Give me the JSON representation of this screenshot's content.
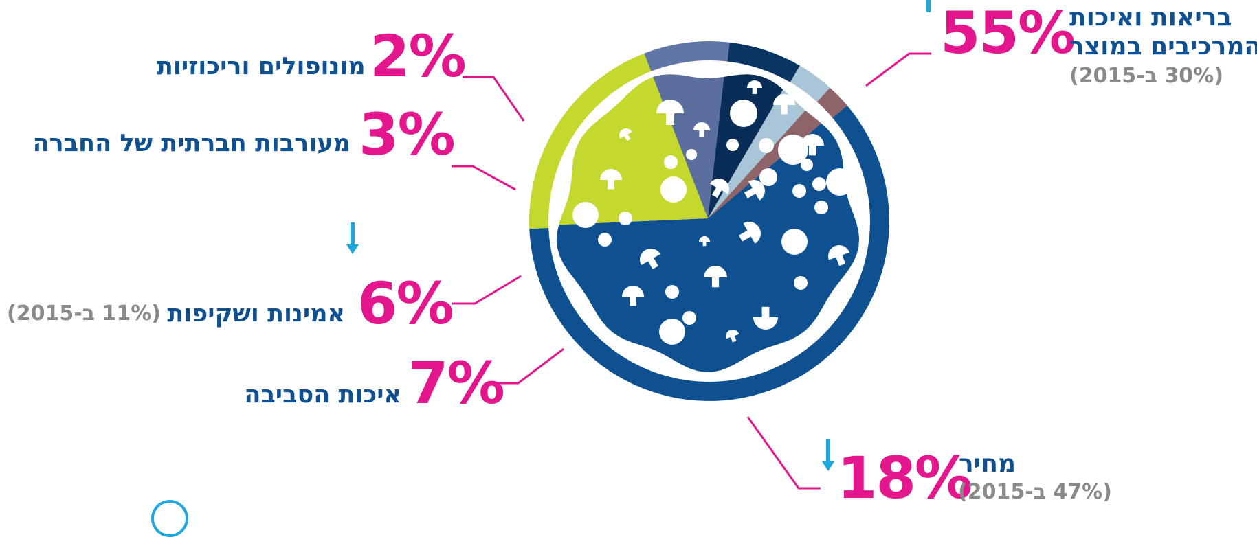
{
  "chart_data": {
    "type": "pie",
    "unit": "%",
    "slices": [
      {
        "label": "בריאות ואיכות המרכיבים במוצר",
        "label_line1": "בריאות ואיכות",
        "label_line2": "המרכיבים במוצר",
        "value": 55,
        "display": "55%",
        "previous": "(30% ב-2015)",
        "trend": "up",
        "color": "#0f5190",
        "pizza_color": "#0f5190"
      },
      {
        "label": "מחיר",
        "value": 18,
        "display": "18%",
        "previous": "(47% ב-2015)",
        "trend": "down",
        "color": "#c4d82e",
        "pizza_color": "#c4d82e"
      },
      {
        "label": "איכות הסביבה",
        "value": 7,
        "display": "7%",
        "color": "#6076a6",
        "pizza_color": "#5b6f9f"
      },
      {
        "label": "אמינות ושקיפות",
        "value": 6,
        "display": "6%",
        "previous": "(11% ב-2015)",
        "trend": "down",
        "color": "#0a3563",
        "pizza_color": "#082d57"
      },
      {
        "label": "מעורבות חברתית של החברה",
        "value": 3,
        "display": "3%",
        "color": "#a8c6d7",
        "pizza_color": "#a8c6d7"
      },
      {
        "label": "מונופולים וריכוזיות",
        "value": 2,
        "display": "2%",
        "color": "#8e6468",
        "pizza_color": "#8e6468"
      }
    ]
  },
  "colors": {
    "percent": "#e3168d",
    "label": "#0f5190",
    "previous": "#8a8a8a",
    "trend_arrow": "#1ea6de"
  }
}
